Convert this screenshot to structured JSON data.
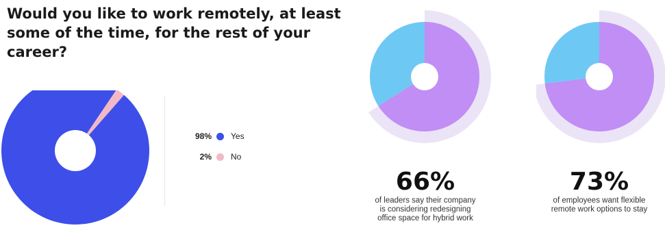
{
  "question": {
    "lines": [
      "Would you like to work remotely, at least",
      "some of the time, for the rest of your career?"
    ]
  },
  "chart_data": [
    {
      "type": "pie",
      "title": "Would you like to work remotely, at least some of the time, for the rest of your career?",
      "categories": [
        "Yes",
        "No"
      ],
      "values": [
        98,
        2
      ],
      "value_labels": [
        "98%",
        "2%"
      ],
      "colors": [
        "#3d4fe8",
        "#f2b8c6"
      ],
      "donut": true,
      "legend_placement": "right"
    },
    {
      "type": "pie",
      "categories": [
        "",
        ""
      ],
      "values": [
        66,
        34
      ],
      "colors": [
        "#c08ef5",
        "#6ec8f4"
      ],
      "donut": true,
      "highlight": "66%"
    },
    {
      "type": "pie",
      "categories": [
        "",
        ""
      ],
      "values": [
        73,
        27
      ],
      "colors": [
        "#c08ef5",
        "#6ec8f4"
      ],
      "donut": true,
      "highlight": "73%"
    }
  ],
  "legend": [
    {
      "pct": "98%",
      "label": "Yes",
      "color": "#3d4fe8"
    },
    {
      "pct": "2%",
      "label": "No",
      "color": "#f2b8c6"
    }
  ],
  "stats": [
    {
      "value": "66%",
      "caption_lines": [
        "of leaders say their company",
        "is considering redesigning",
        "office space for hybrid work"
      ]
    },
    {
      "value": "73%",
      "caption_lines": [
        "of employees want flexible",
        "remote work options to stay"
      ]
    }
  ],
  "colors": {
    "halo": "#ebe4f6",
    "hole": "#ffffff"
  }
}
